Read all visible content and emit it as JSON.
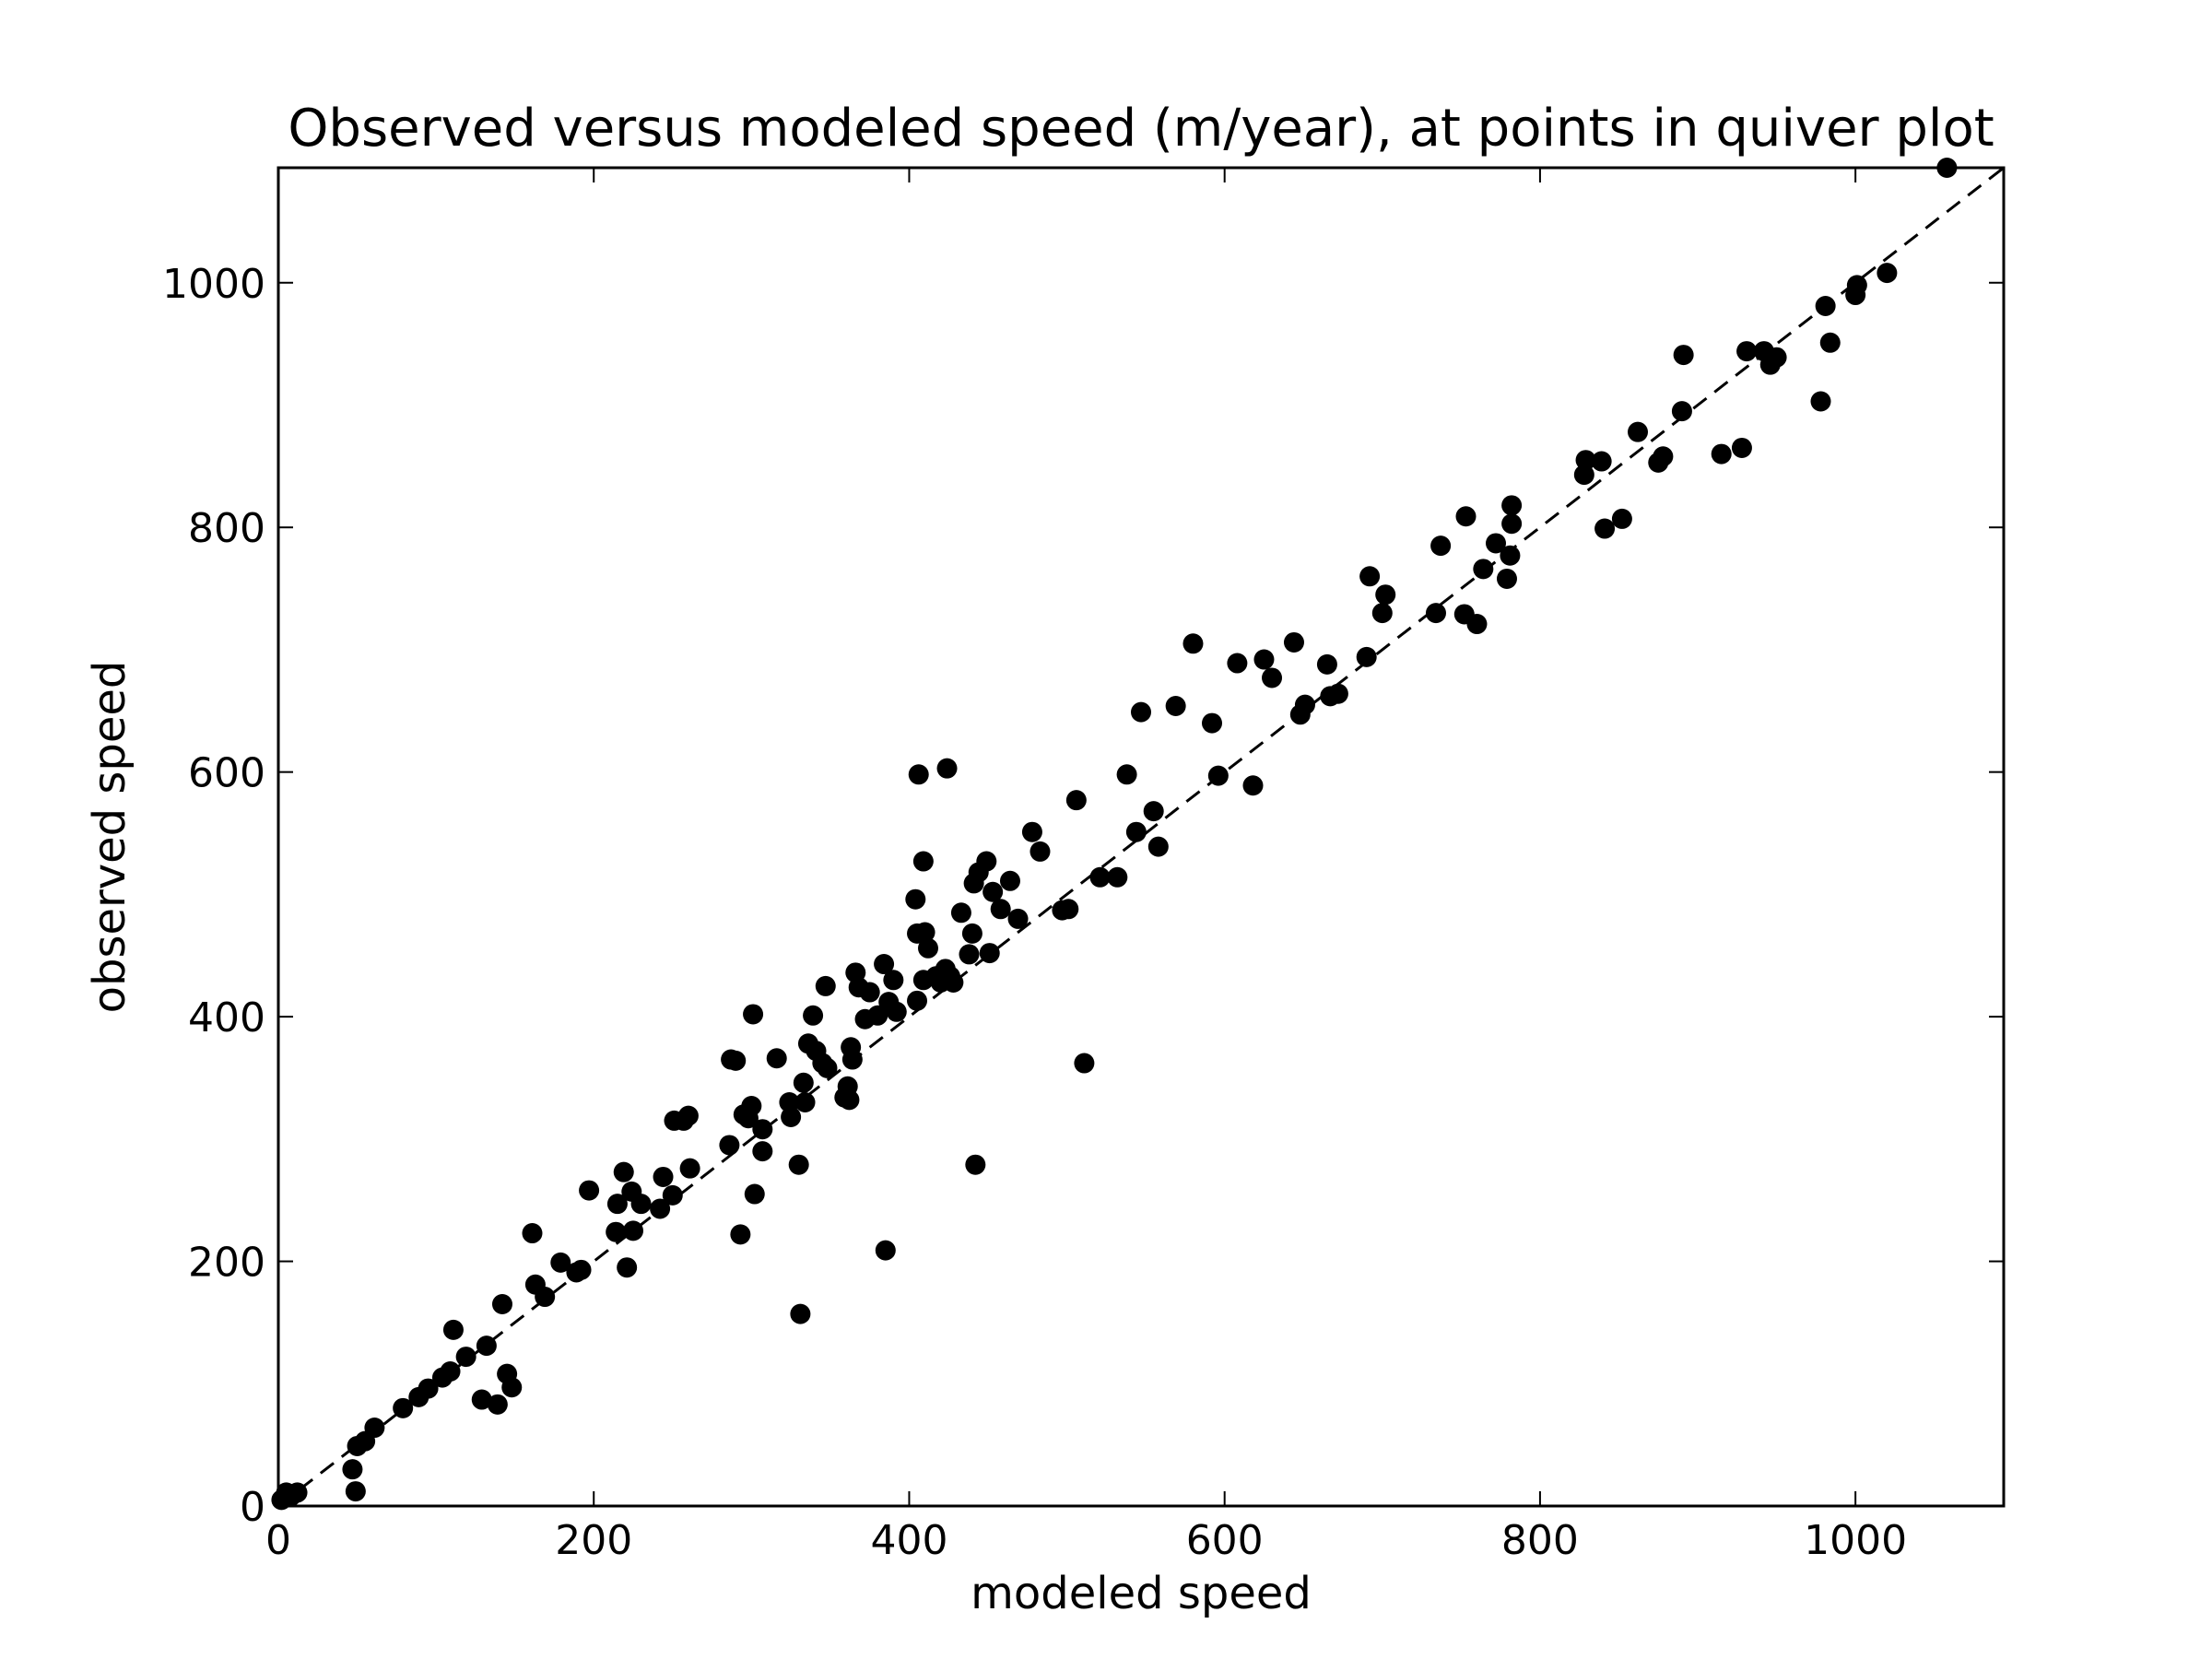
{
  "chart_data": {
    "type": "scatter",
    "title": "Observed versus modeled speed (m/year), at points in quiver plot",
    "xlabel": "modeled speed",
    "ylabel": "observed speed",
    "xlim": [
      0,
      1094
    ],
    "ylim": [
      0,
      1094
    ],
    "xticks": [
      0,
      200,
      400,
      600,
      800,
      1000
    ],
    "yticks": [
      0,
      200,
      400,
      600,
      800,
      1000
    ],
    "grid": false,
    "colors": {
      "marker": "#000000",
      "reference_line": "#000000"
    },
    "reference_line": {
      "style": "dashed",
      "points": [
        [
          0,
          0
        ],
        [
          1094,
          1094
        ]
      ]
    },
    "series": [
      {
        "values": [
          [
            2,
            5
          ],
          [
            5,
            11
          ],
          [
            8,
            8
          ],
          [
            12,
            11
          ],
          [
            47,
            30
          ],
          [
            49,
            12
          ],
          [
            50,
            49
          ],
          [
            55,
            53
          ],
          [
            61,
            64
          ],
          [
            79,
            80
          ],
          [
            89,
            89
          ],
          [
            95,
            96
          ],
          [
            104,
            105
          ],
          [
            109,
            110
          ],
          [
            111,
            144
          ],
          [
            119,
            122
          ],
          [
            129,
            87
          ],
          [
            132,
            131
          ],
          [
            139,
            83
          ],
          [
            142,
            165
          ],
          [
            145,
            108
          ],
          [
            148,
            97
          ],
          [
            161,
            223
          ],
          [
            163,
            181
          ],
          [
            169,
            171
          ],
          [
            179,
            199
          ],
          [
            189,
            191
          ],
          [
            192,
            193
          ],
          [
            197,
            258
          ],
          [
            214,
            224
          ],
          [
            215,
            247
          ],
          [
            219,
            273
          ],
          [
            221,
            195
          ],
          [
            224,
            257
          ],
          [
            225,
            225
          ],
          [
            230,
            247
          ],
          [
            242,
            243
          ],
          [
            244,
            269
          ],
          [
            250,
            254
          ],
          [
            251,
            315
          ],
          [
            257,
            315
          ],
          [
            260,
            319
          ],
          [
            261,
            276
          ],
          [
            286,
            295
          ],
          [
            287,
            365
          ],
          [
            290,
            364
          ],
          [
            293,
            222
          ],
          [
            295,
            320
          ],
          [
            298,
            317
          ],
          [
            300,
            327
          ],
          [
            301,
            402
          ],
          [
            302,
            255
          ],
          [
            307,
            308
          ],
          [
            307,
            290
          ],
          [
            316,
            366
          ],
          [
            324,
            330
          ],
          [
            325,
            318
          ],
          [
            330,
            279
          ],
          [
            331,
            157
          ],
          [
            333,
            346
          ],
          [
            334,
            330
          ],
          [
            336,
            378
          ],
          [
            339,
            401
          ],
          [
            341,
            372
          ],
          [
            345,
            362
          ],
          [
            347,
            425
          ],
          [
            348,
            358
          ],
          [
            359,
            334
          ],
          [
            361,
            343
          ],
          [
            362,
            332
          ],
          [
            363,
            375
          ],
          [
            364,
            365
          ],
          [
            366,
            436
          ],
          [
            368,
            424
          ],
          [
            372,
            398
          ],
          [
            375,
            420
          ],
          [
            380,
            401
          ],
          [
            384,
            443
          ],
          [
            385,
            209
          ],
          [
            387,
            412
          ],
          [
            390,
            430
          ],
          [
            392,
            404
          ],
          [
            404,
            496
          ],
          [
            405,
            468
          ],
          [
            405,
            413
          ],
          [
            406,
            598
          ],
          [
            409,
            430
          ],
          [
            409,
            527
          ],
          [
            410,
            469
          ],
          [
            412,
            456
          ],
          [
            417,
            433
          ],
          [
            420,
            428
          ],
          [
            423,
            439
          ],
          [
            424,
            603
          ],
          [
            426,
            433
          ],
          [
            428,
            428
          ],
          [
            433,
            485
          ],
          [
            438,
            451
          ],
          [
            440,
            468
          ],
          [
            441,
            509
          ],
          [
            442,
            279
          ],
          [
            444,
            518
          ],
          [
            449,
            527
          ],
          [
            451,
            452
          ],
          [
            453,
            502
          ],
          [
            458,
            488
          ],
          [
            464,
            511
          ],
          [
            469,
            480
          ],
          [
            478,
            551
          ],
          [
            483,
            535
          ],
          [
            497,
            487
          ],
          [
            501,
            488
          ],
          [
            506,
            577
          ],
          [
            511,
            362
          ],
          [
            521,
            514
          ],
          [
            532,
            514
          ],
          [
            538,
            598
          ],
          [
            544,
            551
          ],
          [
            547,
            649
          ],
          [
            555,
            568
          ],
          [
            558,
            539
          ],
          [
            569,
            654
          ],
          [
            580,
            705
          ],
          [
            592,
            640
          ],
          [
            596,
            597
          ],
          [
            608,
            689
          ],
          [
            618,
            589
          ],
          [
            625,
            692
          ],
          [
            630,
            677
          ],
          [
            644,
            706
          ],
          [
            648,
            647
          ],
          [
            651,
            655
          ],
          [
            665,
            688
          ],
          [
            667,
            662
          ],
          [
            672,
            664
          ],
          [
            690,
            694
          ],
          [
            692,
            760
          ],
          [
            700,
            730
          ],
          [
            702,
            745
          ],
          [
            734,
            730
          ],
          [
            737,
            785
          ],
          [
            752,
            729
          ],
          [
            753,
            809
          ],
          [
            760,
            721
          ],
          [
            764,
            766
          ],
          [
            772,
            787
          ],
          [
            779,
            758
          ],
          [
            781,
            777
          ],
          [
            782,
            818
          ],
          [
            782,
            803
          ],
          [
            828,
            843
          ],
          [
            829,
            855
          ],
          [
            839,
            854
          ],
          [
            841,
            799
          ],
          [
            852,
            807
          ],
          [
            862,
            878
          ],
          [
            875,
            853
          ],
          [
            878,
            858
          ],
          [
            890,
            895
          ],
          [
            891,
            941
          ],
          [
            915,
            860
          ],
          [
            928,
            865
          ],
          [
            931,
            944
          ],
          [
            942,
            944
          ],
          [
            946,
            933
          ],
          [
            950,
            939
          ],
          [
            978,
            903
          ],
          [
            981,
            981
          ],
          [
            984,
            951
          ],
          [
            1000,
            990
          ],
          [
            1001,
            998
          ],
          [
            1020,
            1008
          ],
          [
            1058,
            1094
          ]
        ]
      }
    ]
  }
}
